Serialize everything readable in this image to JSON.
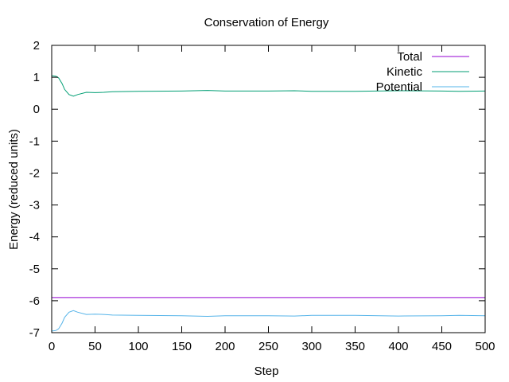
{
  "chart_data": {
    "type": "line",
    "title": "Conservation of Energy",
    "xlabel": "Step",
    "ylabel": "Energy (reduced units)",
    "xlim": [
      0,
      500
    ],
    "ylim": [
      -7,
      2
    ],
    "xticks": [
      0,
      50,
      100,
      150,
      200,
      250,
      300,
      350,
      400,
      450,
      500
    ],
    "yticks": [
      -7,
      -6,
      -5,
      -4,
      -3,
      -2,
      -1,
      0,
      1,
      2
    ],
    "grid": false,
    "legend_position": "top-right",
    "series": [
      {
        "name": "Total",
        "color": "#9400d3",
        "points": [
          [
            0,
            -5.9
          ],
          [
            500,
            -5.9
          ]
        ]
      },
      {
        "name": "Kinetic",
        "color": "#009e73",
        "points": [
          [
            0,
            1.05
          ],
          [
            5,
            1.03
          ],
          [
            8,
            0.98
          ],
          [
            12,
            0.8
          ],
          [
            15,
            0.62
          ],
          [
            20,
            0.46
          ],
          [
            25,
            0.41
          ],
          [
            30,
            0.46
          ],
          [
            40,
            0.53
          ],
          [
            50,
            0.52
          ],
          [
            60,
            0.53
          ],
          [
            70,
            0.55
          ],
          [
            100,
            0.56
          ],
          [
            150,
            0.57
          ],
          [
            180,
            0.59
          ],
          [
            200,
            0.57
          ],
          [
            250,
            0.57
          ],
          [
            280,
            0.58
          ],
          [
            300,
            0.56
          ],
          [
            350,
            0.56
          ],
          [
            400,
            0.58
          ],
          [
            450,
            0.57
          ],
          [
            470,
            0.56
          ],
          [
            500,
            0.57
          ]
        ]
      },
      {
        "name": "Potential",
        "color": "#56b4e9",
        "points": [
          [
            0,
            -6.95
          ],
          [
            5,
            -6.93
          ],
          [
            8,
            -6.88
          ],
          [
            12,
            -6.7
          ],
          [
            15,
            -6.52
          ],
          [
            20,
            -6.36
          ],
          [
            25,
            -6.31
          ],
          [
            30,
            -6.36
          ],
          [
            40,
            -6.43
          ],
          [
            50,
            -6.42
          ],
          [
            60,
            -6.43
          ],
          [
            70,
            -6.45
          ],
          [
            100,
            -6.46
          ],
          [
            150,
            -6.47
          ],
          [
            180,
            -6.49
          ],
          [
            200,
            -6.47
          ],
          [
            250,
            -6.47
          ],
          [
            280,
            -6.48
          ],
          [
            300,
            -6.46
          ],
          [
            350,
            -6.46
          ],
          [
            400,
            -6.48
          ],
          [
            450,
            -6.47
          ],
          [
            470,
            -6.46
          ],
          [
            500,
            -6.47
          ]
        ]
      }
    ]
  }
}
